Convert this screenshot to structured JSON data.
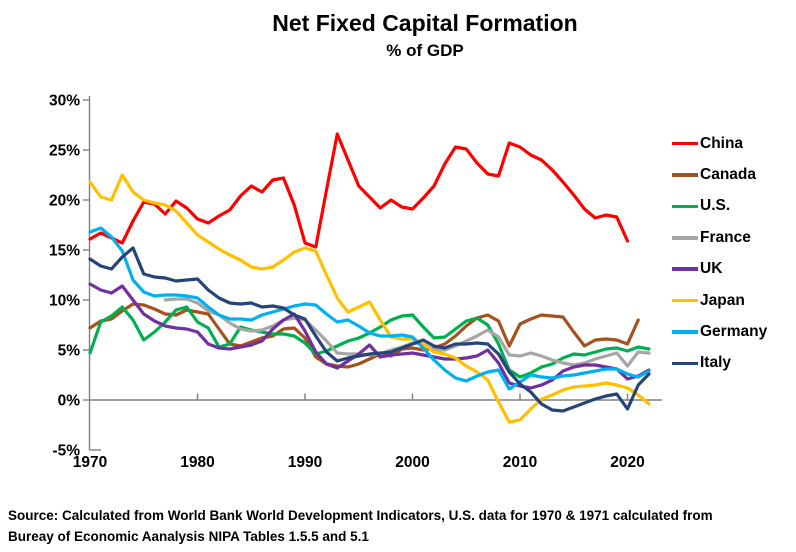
{
  "chart": {
    "title": "Net Fixed Capital Formation",
    "subtitle": "% of GDP"
  },
  "source": {
    "line1": "Source:  Calculated from World Bank World Development Indicators, U.S. data for 1970 & 1971 calculated from",
    "line2": "Bureay of Economic Aanalysis NIPA Tables 1.5.5 and 5.1"
  },
  "chart_data": {
    "type": "line",
    "title": "Net Fixed Capital Formation",
    "subtitle": "% of GDP",
    "xlabel": "",
    "ylabel": "% of GDP",
    "ylim": [
      -5,
      30
    ],
    "y_ticks": [
      30,
      25,
      20,
      15,
      10,
      5,
      0,
      -5
    ],
    "y_tick_suffix": "%",
    "x_ticks": [
      1970,
      1980,
      1990,
      2000,
      2010,
      2020
    ],
    "grid": false,
    "legend_position": "right",
    "axis_color": "#808080",
    "x": [
      1970,
      1971,
      1972,
      1973,
      1974,
      1975,
      1976,
      1977,
      1978,
      1979,
      1980,
      1981,
      1982,
      1983,
      1984,
      1985,
      1986,
      1987,
      1988,
      1989,
      1990,
      1991,
      1992,
      1993,
      1994,
      1995,
      1996,
      1997,
      1998,
      1999,
      2000,
      2001,
      2002,
      2003,
      2004,
      2005,
      2006,
      2007,
      2008,
      2009,
      2010,
      2011,
      2012,
      2013,
      2014,
      2015,
      2016,
      2017,
      2018,
      2019,
      2020,
      2021,
      2022
    ],
    "series": [
      {
        "name": "China",
        "color": "#FF0000",
        "values": [
          16.1,
          16.7,
          16.2,
          15.7,
          17.9,
          19.8,
          19.6,
          18.6,
          19.9,
          19.2,
          18.1,
          17.7,
          18.4,
          19.0,
          20.4,
          21.4,
          20.8,
          22.0,
          22.2,
          19.5,
          15.7,
          15.3,
          21.0,
          26.6,
          24.0,
          21.4,
          20.3,
          19.2,
          20.0,
          19.3,
          19.1,
          20.2,
          21.4,
          23.6,
          25.3,
          25.1,
          23.7,
          22.6,
          22.4,
          25.7,
          25.3,
          24.5,
          24.0,
          23.0,
          21.8,
          20.5,
          19.1,
          18.2,
          18.5,
          18.3,
          15.9,
          null,
          null
        ]
      },
      {
        "name": "Canada",
        "color": "#A5511D",
        "values": [
          7.2,
          7.9,
          8.1,
          8.9,
          9.6,
          9.5,
          9.1,
          8.6,
          8.5,
          9.0,
          8.8,
          8.6,
          7.1,
          5.6,
          5.4,
          5.8,
          6.2,
          6.4,
          7.1,
          7.2,
          6.2,
          4.3,
          3.6,
          3.4,
          3.3,
          3.6,
          4.1,
          4.6,
          4.4,
          5.1,
          5.2,
          5.0,
          5.2,
          5.6,
          6.4,
          7.4,
          8.2,
          8.5,
          7.9,
          5.4,
          7.6,
          8.1,
          8.5,
          8.4,
          8.3,
          6.8,
          5.4,
          6.0,
          6.1,
          6.0,
          5.6,
          8.0,
          null
        ]
      },
      {
        "name": "U.S.",
        "color": "#00B050",
        "values": [
          4.7,
          7.8,
          8.4,
          9.3,
          8.0,
          6.0,
          6.8,
          7.8,
          9.0,
          9.3,
          7.8,
          7.2,
          5.3,
          5.6,
          7.3,
          7.0,
          6.8,
          6.6,
          6.6,
          6.4,
          5.7,
          4.6,
          4.9,
          5.4,
          5.9,
          6.2,
          6.7,
          7.3,
          8.0,
          8.4,
          8.5,
          7.3,
          6.2,
          6.3,
          7.1,
          7.9,
          8.2,
          7.5,
          5.6,
          3.0,
          2.3,
          2.7,
          3.3,
          3.6,
          4.2,
          4.6,
          4.5,
          4.8,
          5.1,
          5.2,
          4.9,
          5.3,
          5.1
        ]
      },
      {
        "name": "France",
        "color": "#A6A6A6",
        "values": [
          null,
          null,
          null,
          null,
          null,
          null,
          null,
          10.0,
          10.1,
          10.1,
          9.7,
          8.9,
          8.5,
          7.7,
          7.1,
          6.9,
          7.0,
          7.4,
          8.0,
          8.2,
          8.0,
          7.0,
          5.9,
          4.7,
          4.6,
          4.6,
          4.5,
          4.6,
          5.0,
          5.3,
          5.7,
          5.6,
          5.0,
          5.0,
          5.4,
          5.9,
          6.4,
          7.0,
          6.3,
          4.5,
          4.4,
          4.7,
          4.4,
          4.0,
          3.7,
          3.5,
          3.7,
          4.1,
          4.4,
          4.7,
          3.4,
          4.8,
          4.7
        ]
      },
      {
        "name": "UK",
        "color": "#7030A0",
        "values": [
          11.6,
          11.0,
          10.7,
          11.4,
          10.0,
          8.6,
          7.9,
          7.4,
          7.2,
          7.1,
          6.8,
          5.6,
          5.2,
          5.1,
          5.3,
          5.5,
          5.9,
          7.1,
          8.0,
          8.6,
          6.9,
          4.8,
          3.6,
          3.2,
          3.9,
          4.6,
          5.5,
          4.3,
          4.5,
          4.6,
          4.7,
          4.5,
          4.3,
          4.1,
          4.1,
          4.2,
          4.4,
          5.0,
          3.7,
          1.7,
          1.4,
          1.2,
          1.5,
          2.0,
          2.9,
          3.3,
          3.5,
          3.5,
          3.3,
          3.1,
          2.1,
          2.4,
          3.0
        ]
      },
      {
        "name": "Japan",
        "color": "#FFC000",
        "values": [
          21.8,
          20.3,
          20.0,
          22.5,
          20.8,
          20.0,
          19.7,
          19.5,
          18.9,
          17.7,
          16.5,
          15.8,
          15.1,
          14.5,
          14.0,
          13.3,
          13.1,
          13.3,
          14.0,
          14.8,
          15.2,
          14.9,
          12.5,
          10.2,
          8.8,
          9.3,
          9.8,
          8.0,
          6.3,
          6.1,
          6.1,
          5.6,
          4.8,
          4.6,
          4.2,
          3.4,
          2.8,
          2.0,
          -0.2,
          -2.2,
          -2.0,
          -0.9,
          0.1,
          0.5,
          1.0,
          1.3,
          1.4,
          1.5,
          1.7,
          1.5,
          1.2,
          0.5,
          -0.4
        ]
      },
      {
        "name": "Germany",
        "color": "#00B0F0",
        "values": [
          16.8,
          17.2,
          16.3,
          14.9,
          12.0,
          10.8,
          10.4,
          10.5,
          10.5,
          10.4,
          10.2,
          9.3,
          8.5,
          8.1,
          8.1,
          8.0,
          8.5,
          8.8,
          9.1,
          9.4,
          9.6,
          9.5,
          8.6,
          7.8,
          8.0,
          7.4,
          6.7,
          6.4,
          6.4,
          6.5,
          6.3,
          5.2,
          4.0,
          3.0,
          2.2,
          1.9,
          2.4,
          2.8,
          3.0,
          1.1,
          1.8,
          2.5,
          2.3,
          2.2,
          2.4,
          2.5,
          2.7,
          2.9,
          3.1,
          3.1,
          2.6,
          2.3,
          2.9
        ]
      },
      {
        "name": "Italy",
        "color": "#264478",
        "values": [
          14.1,
          13.4,
          13.1,
          14.3,
          15.2,
          12.6,
          12.3,
          12.2,
          11.9,
          12.0,
          12.1,
          11.0,
          10.2,
          9.7,
          9.6,
          9.7,
          9.3,
          9.4,
          9.2,
          8.5,
          8.1,
          6.4,
          4.8,
          3.9,
          4.2,
          4.4,
          4.6,
          4.7,
          4.8,
          5.2,
          5.6,
          6.0,
          5.4,
          5.2,
          5.6,
          5.6,
          5.7,
          5.6,
          4.6,
          2.8,
          1.6,
          0.8,
          -0.4,
          -1.0,
          -1.1,
          -0.7,
          -0.3,
          0.1,
          0.4,
          0.6,
          -0.9,
          1.5,
          2.6
        ]
      }
    ]
  }
}
